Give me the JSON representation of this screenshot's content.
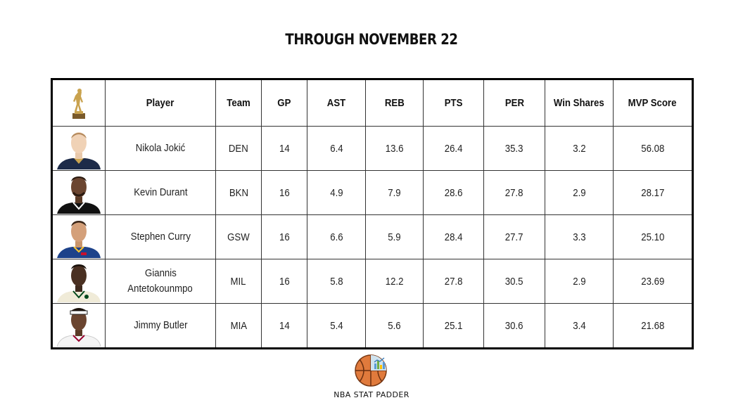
{
  "title": "THROUGH NOVEMBER 22",
  "table": {
    "headers": {
      "icon": "mvp-trophy-icon",
      "player": "Player",
      "team": "Team",
      "gp": "GP",
      "ast": "AST",
      "reb": "REB",
      "pts": "PTS",
      "per": "PER",
      "ws": "Win Shares",
      "mvp": "MVP Score"
    },
    "rows": [
      {
        "photo": "player-headshot",
        "player": "Nikola Jokić",
        "team": "DEN",
        "gp": "14",
        "ast": "6.4",
        "reb": "13.6",
        "pts": "26.4",
        "per": "35.3",
        "ws": "3.2",
        "mvp": "56.08",
        "jersey_color": "#1d2b49"
      },
      {
        "photo": "player-headshot",
        "player": "Kevin Durant",
        "team": "BKN",
        "gp": "16",
        "ast": "4.9",
        "reb": "7.9",
        "pts": "28.6",
        "per": "27.8",
        "ws": "2.9",
        "mvp": "28.17",
        "jersey_color": "#111111"
      },
      {
        "photo": "player-headshot",
        "player": "Stephen Curry",
        "team": "GSW",
        "gp": "16",
        "ast": "6.6",
        "reb": "5.9",
        "pts": "28.4",
        "per": "27.7",
        "ws": "3.3",
        "mvp": "25.10",
        "jersey_color": "#1d428a"
      },
      {
        "photo": "player-headshot",
        "player_line1": "Giannis",
        "player_line2": "Antetokounmpo",
        "team": "MIL",
        "gp": "16",
        "ast": "5.8",
        "reb": "12.2",
        "pts": "27.8",
        "per": "30.5",
        "ws": "2.9",
        "mvp": "23.69",
        "jersey_color": "#f0ebd8"
      },
      {
        "photo": "player-headshot",
        "player": "Jimmy Butler",
        "team": "MIA",
        "gp": "14",
        "ast": "5.4",
        "reb": "5.6",
        "pts": "25.1",
        "per": "30.6",
        "ws": "3.4",
        "mvp": "21.68",
        "jersey_color": "#f4f4f4"
      }
    ]
  },
  "brand": {
    "name": "NBA STAT PADDER",
    "logo": "basketball-chart-logo"
  },
  "colors": {
    "border": "#000000",
    "basketball": "#e07a3c",
    "chart_accent": "#5b9bd5"
  }
}
